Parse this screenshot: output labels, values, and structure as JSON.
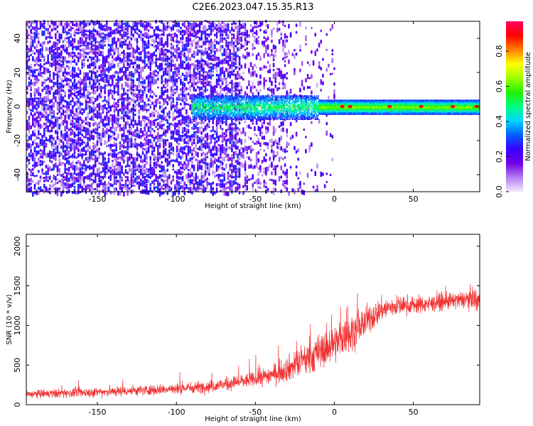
{
  "title": "C2E6.2023.047.15.35.R13",
  "chart_data": [
    {
      "type": "heatmap",
      "xlabel": "Height of straight line (km)",
      "ylabel": "Frequency (Hz)",
      "xlim": [
        -195,
        92
      ],
      "ylim": [
        -50,
        50
      ],
      "xticks": [
        -150,
        -100,
        -50,
        0,
        50
      ],
      "yticks": [
        -40,
        -20,
        0,
        20,
        40
      ],
      "colorbar": {
        "label": "Normalized spectral amplitude",
        "ticks": [
          0.0,
          0.2,
          0.4,
          0.6,
          0.8
        ],
        "range": [
          0,
          0.97
        ],
        "colors": [
          "#f2eaff",
          "#b480f0",
          "#7000e8",
          "#3a00ff",
          "#0060ff",
          "#00d8ff",
          "#00ff80",
          "#20f000",
          "#a0ff00",
          "#ffff00",
          "#ff8000",
          "#ff0000",
          "#ff0060"
        ]
      },
      "features": {
        "noise_region_x": [
          -195,
          -20
        ],
        "ridge_x": [
          -90,
          92
        ],
        "ridge_frequency_hz": 0,
        "peak_points_x": [
          5,
          10,
          35,
          55,
          75,
          90
        ]
      }
    },
    {
      "type": "line",
      "xlabel": "Height of straight line (km)",
      "ylabel": "SNR (10 * v/v)",
      "xlim": [
        -195,
        92
      ],
      "ylim": [
        0,
        2150
      ],
      "xticks": [
        -150,
        -100,
        -50,
        0,
        50
      ],
      "yticks": [
        0,
        500,
        1000,
        1500,
        2000
      ],
      "series": [
        {
          "color": "#f03232",
          "envelope_x": [
            -195,
            -150,
            -100,
            -75,
            -50,
            -40,
            -30,
            -20,
            -10,
            0,
            10,
            20,
            30,
            40,
            50,
            60,
            70,
            80,
            88,
            92
          ],
          "envelope_mean": [
            130,
            160,
            200,
            240,
            320,
            380,
            450,
            550,
            650,
            780,
            900,
            1050,
            1200,
            1250,
            1260,
            1270,
            1300,
            1320,
            1350,
            1300
          ],
          "envelope_spread": [
            60,
            70,
            80,
            90,
            110,
            140,
            180,
            230,
            260,
            270,
            260,
            220,
            170,
            140,
            130,
            120,
            120,
            120,
            150,
            200
          ]
        }
      ]
    }
  ]
}
